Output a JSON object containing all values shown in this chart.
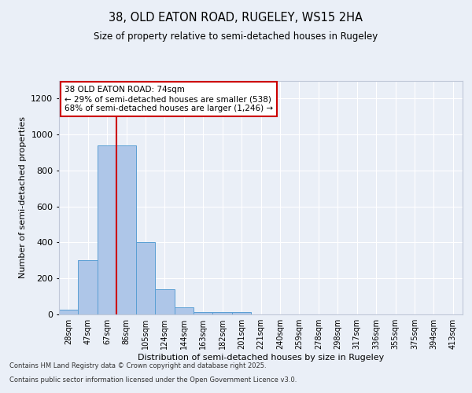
{
  "title_line1": "38, OLD EATON ROAD, RUGELEY, WS15 2HA",
  "title_line2": "Size of property relative to semi-detached houses in Rugeley",
  "xlabel": "Distribution of semi-detached houses by size in Rugeley",
  "ylabel": "Number of semi-detached properties",
  "footer_line1": "Contains HM Land Registry data © Crown copyright and database right 2025.",
  "footer_line2": "Contains public sector information licensed under the Open Government Licence v3.0.",
  "annotation_title": "38 OLD EATON ROAD: 74sqm",
  "annotation_line2": "← 29% of semi-detached houses are smaller (538)",
  "annotation_line3": "68% of semi-detached houses are larger (1,246) →",
  "bar_labels": [
    "28sqm",
    "47sqm",
    "67sqm",
    "86sqm",
    "105sqm",
    "124sqm",
    "144sqm",
    "163sqm",
    "182sqm",
    "201sqm",
    "221sqm",
    "240sqm",
    "259sqm",
    "278sqm",
    "298sqm",
    "317sqm",
    "336sqm",
    "355sqm",
    "375sqm",
    "394sqm",
    "413sqm"
  ],
  "bar_values": [
    25,
    300,
    940,
    940,
    400,
    140,
    40,
    15,
    15,
    15,
    0,
    0,
    0,
    0,
    0,
    0,
    0,
    0,
    0,
    0,
    0
  ],
  "bar_color": "#aec6e8",
  "bar_edge_color": "#5a9fd4",
  "red_line_x": 2.5,
  "ylim": [
    0,
    1300
  ],
  "yticks": [
    0,
    200,
    400,
    600,
    800,
    1000,
    1200
  ],
  "bg_color": "#eaeff7",
  "plot_bg_color": "#eaeff7",
  "grid_color": "#ffffff",
  "annotation_box_color": "#ffffff",
  "annotation_box_edge": "#cc0000",
  "red_line_color": "#cc0000"
}
